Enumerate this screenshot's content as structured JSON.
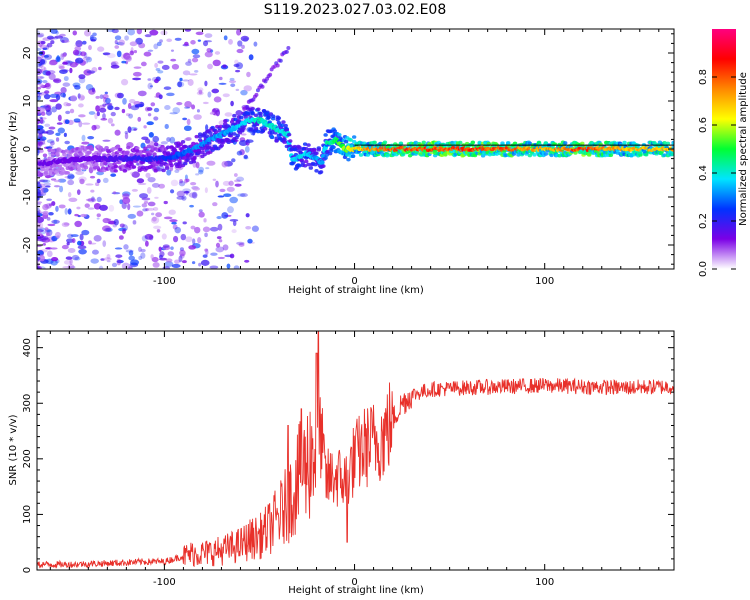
{
  "figure": {
    "title": "S119.2023.027.03.02.E08"
  },
  "chart_data": [
    {
      "type": "heatmap",
      "xlabel": "Height of straight line (km)",
      "ylabel": "Frequency (Hz)",
      "xlim": [
        -167,
        168
      ],
      "ylim": [
        -25,
        25
      ],
      "xticks": [
        -100,
        0,
        100
      ],
      "yticks": [
        -20,
        -10,
        0,
        10,
        20
      ],
      "grid": false,
      "colorbar": {
        "label": "Normalized spectral amplitude",
        "range": [
          0,
          1
        ],
        "ticks": [
          0.0,
          0.2,
          0.4,
          0.6,
          0.8
        ],
        "colormap": [
          "#ffffff",
          "#7b00e6",
          "#0033ff",
          "#00e5ff",
          "#00ff33",
          "#ffff00",
          "#ff8800",
          "#ff0000",
          "#ff007f"
        ]
      },
      "ridge": {
        "x": [
          -167,
          -140,
          -120,
          -100,
          -90,
          -80,
          -70,
          -60,
          -55,
          -50,
          -45,
          -40,
          -35,
          -33,
          -30,
          -25,
          -20,
          -17,
          -15,
          -10,
          -5,
          0,
          5,
          10,
          20,
          40,
          60,
          80,
          100,
          120,
          140,
          168
        ],
        "y": [
          -3,
          -2,
          -2,
          -2,
          -1,
          1,
          3,
          5,
          6,
          6,
          5,
          4,
          3,
          -2,
          -2,
          -1,
          -2,
          -3,
          1,
          2,
          0,
          0,
          0,
          0,
          0,
          0,
          0,
          0,
          0,
          0,
          0,
          0
        ],
        "amplitude": [
          0.15,
          0.15,
          0.2,
          0.25,
          0.3,
          0.35,
          0.35,
          0.4,
          0.4,
          0.45,
          0.45,
          0.45,
          0.4,
          0.4,
          0.4,
          0.4,
          0.35,
          0.35,
          0.45,
          0.5,
          0.6,
          0.7,
          0.75,
          0.8,
          0.85,
          0.9,
          0.9,
          0.85,
          0.75,
          0.9,
          0.75,
          0.75
        ]
      }
    },
    {
      "type": "line",
      "xlabel": "Height of straight line (km)",
      "ylabel": "SNR (10 * v/v)",
      "xlim": [
        -167,
        168
      ],
      "ylim": [
        0,
        430
      ],
      "xticks": [
        -100,
        0,
        100
      ],
      "yticks": [
        0,
        100,
        200,
        300,
        400
      ],
      "grid": false,
      "color": "#e8302a",
      "x": [
        -167,
        -150,
        -130,
        -110,
        -100,
        -90,
        -85,
        -80,
        -70,
        -60,
        -55,
        -50,
        -45,
        -40,
        -35,
        -30,
        -25,
        -22,
        -20,
        -18,
        -15,
        -10,
        -5,
        0,
        5,
        10,
        15,
        20,
        25,
        30,
        40,
        60,
        80,
        100,
        120,
        140,
        168
      ],
      "y": [
        10,
        10,
        12,
        15,
        15,
        25,
        30,
        30,
        35,
        45,
        55,
        60,
        75,
        95,
        120,
        160,
        190,
        220,
        210,
        250,
        160,
        170,
        160,
        200,
        220,
        230,
        240,
        270,
        300,
        315,
        325,
        328,
        330,
        332,
        330,
        328,
        330
      ],
      "spikes": [
        {
          "x": -19,
          "y": 430
        },
        {
          "x": -20,
          "y": 390
        },
        {
          "x": -4,
          "y": 50
        },
        {
          "x": -35,
          "y": 260
        },
        {
          "x": -28,
          "y": 290
        }
      ]
    }
  ]
}
